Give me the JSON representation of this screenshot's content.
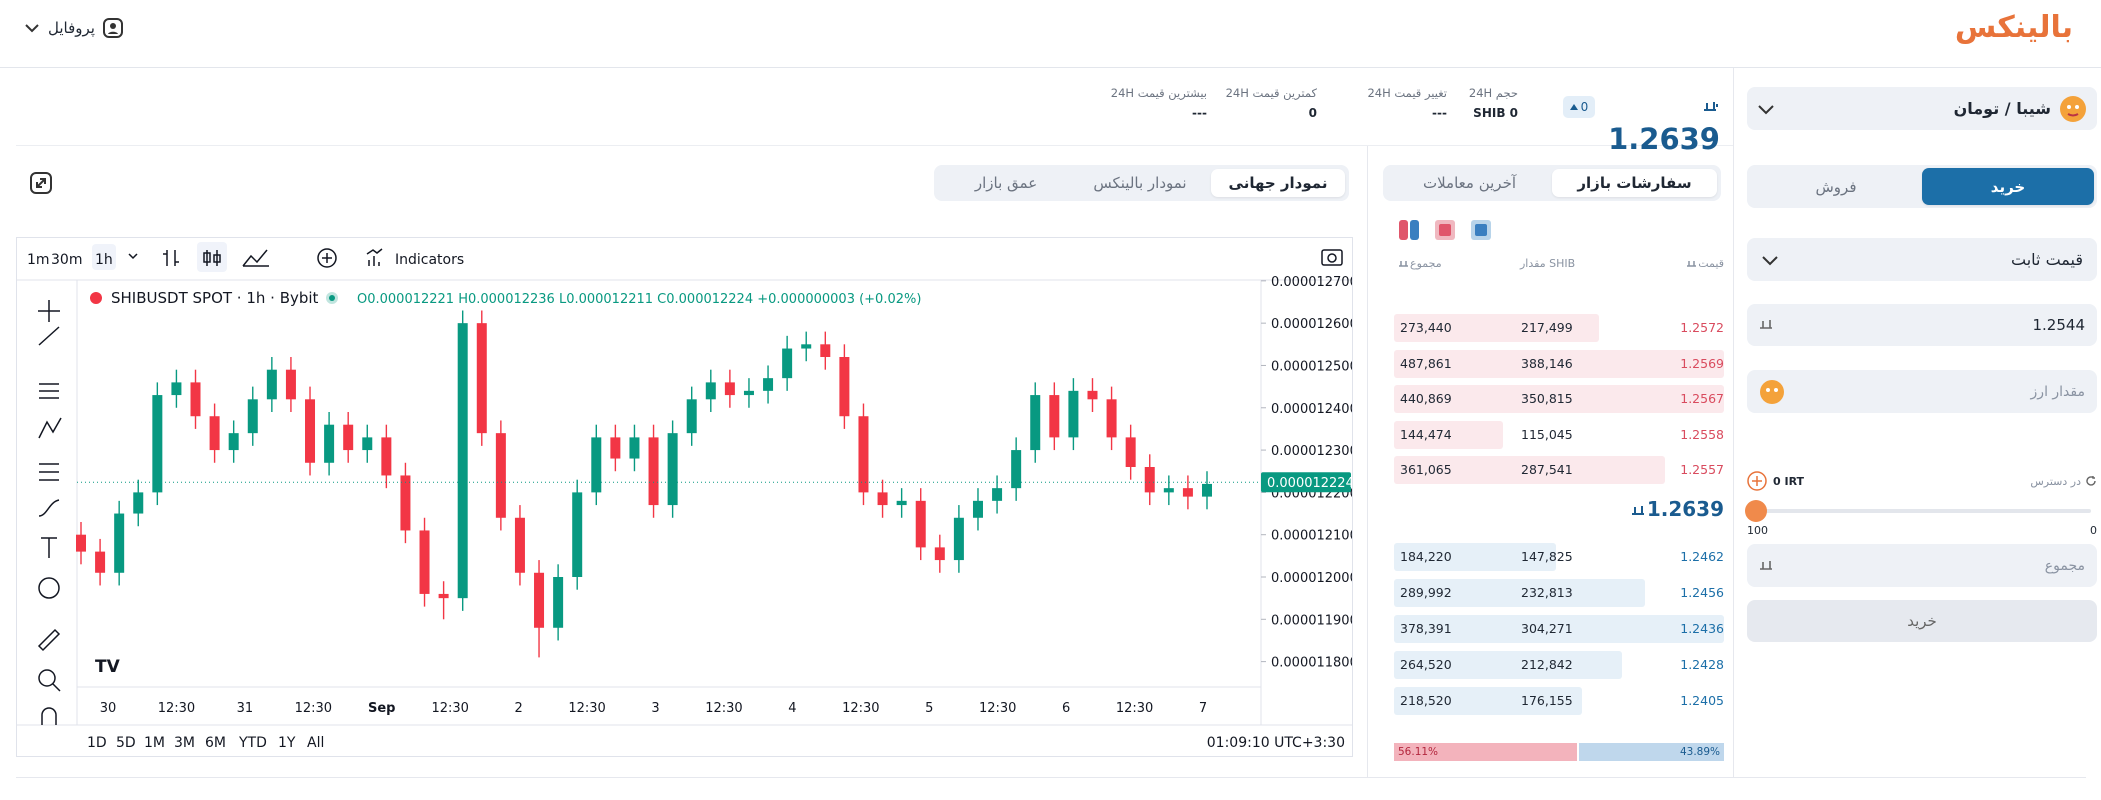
{
  "header": {
    "logo": "بالینکس",
    "profile": "پروفایل"
  },
  "ticker": {
    "pair": "شیبا / تومان",
    "price": "1.2639",
    "change_badge": "0",
    "stats": [
      {
        "label": "حجم 24H",
        "value": "SHIB 0"
      },
      {
        "label": "تغییر قیمت 24H",
        "value": "---"
      },
      {
        "label": "کمترین قیمت 24H",
        "value": "0"
      },
      {
        "label": "بیشترین قیمت 24H",
        "value": "---"
      }
    ]
  },
  "chart_tabs": [
    "نمودار جهانی",
    "نمودار بالینکس",
    "عمق بازار"
  ],
  "chart_data": {
    "type": "candlestick",
    "title": "SHIBUSDT SPOT · 1h · Bybit",
    "ohlc_legend": "O0.000012221 H0.000012236 L0.000012211 C0.000012224 +0.000000003 (+0.02%)",
    "intervals": [
      "1m",
      "30m",
      "1h"
    ],
    "indicators": "Indicators",
    "ranges": [
      "1D",
      "5D",
      "1M",
      "3M",
      "6M",
      "YTD",
      "1Y",
      "All"
    ],
    "clock": "01:09:10 UTC+3:30",
    "x_labels": [
      "30",
      "12:30",
      "31",
      "12:30",
      "Sep",
      "12:30",
      "2",
      "12:30",
      "3",
      "12:30",
      "4",
      "12:30",
      "5",
      "12:30",
      "6",
      "12:30",
      "7"
    ],
    "up_color": "#089981",
    "down_color": "#f23645",
    "open": [
      1.21e-05,
      1.206e-05,
      1.201e-05,
      1.215e-05,
      1.22e-05,
      1.243e-05,
      1.246e-05,
      1.238e-05,
      1.23e-05,
      1.234e-05,
      1.242e-05,
      1.249e-05,
      1.242e-05,
      1.227e-05,
      1.236e-05,
      1.23e-05,
      1.233e-05,
      1.224e-05,
      1.211e-05,
      1.196e-05,
      1.195e-05,
      1.26e-05,
      1.234e-05,
      1.214e-05,
      1.201e-05,
      1.188e-05,
      1.2e-05,
      1.22e-05,
      1.233e-05,
      1.228e-05,
      1.233e-05,
      1.217e-05,
      1.234e-05,
      1.242e-05,
      1.246e-05,
      1.243e-05,
      1.244e-05,
      1.247e-05,
      1.254e-05,
      1.255e-05,
      1.252e-05,
      1.238e-05,
      1.22e-05,
      1.217e-05,
      1.218e-05,
      1.207e-05,
      1.204e-05,
      1.214e-05,
      1.218e-05,
      1.221e-05,
      1.23e-05,
      1.243e-05,
      1.233e-05,
      1.244e-05,
      1.242e-05,
      1.233e-05,
      1.226e-05,
      1.22e-05,
      1.221e-05,
      1.219e-05
    ],
    "high": [
      1.213e-05,
      1.209e-05,
      1.218e-05,
      1.223e-05,
      1.246e-05,
      1.249e-05,
      1.249e-05,
      1.241e-05,
      1.237e-05,
      1.245e-05,
      1.252e-05,
      1.252e-05,
      1.245e-05,
      1.239e-05,
      1.239e-05,
      1.236e-05,
      1.236e-05,
      1.227e-05,
      1.214e-05,
      1.199e-05,
      1.263e-05,
      1.263e-05,
      1.237e-05,
      1.217e-05,
      1.204e-05,
      1.203e-05,
      1.223e-05,
      1.236e-05,
      1.236e-05,
      1.236e-05,
      1.236e-05,
      1.237e-05,
      1.245e-05,
      1.249e-05,
      1.249e-05,
      1.247e-05,
      1.25e-05,
      1.257e-05,
      1.258e-05,
      1.258e-05,
      1.255e-05,
      1.241e-05,
      1.223e-05,
      1.221e-05,
      1.221e-05,
      1.21e-05,
      1.217e-05,
      1.221e-05,
      1.224e-05,
      1.233e-05,
      1.246e-05,
      1.246e-05,
      1.247e-05,
      1.247e-05,
      1.245e-05,
      1.236e-05,
      1.229e-05,
      1.224e-05,
      1.224e-05,
      1.225e-05
    ],
    "low": [
      1.203e-05,
      1.198e-05,
      1.198e-05,
      1.212e-05,
      1.217e-05,
      1.24e-05,
      1.235e-05,
      1.227e-05,
      1.227e-05,
      1.231e-05,
      1.239e-05,
      1.239e-05,
      1.224e-05,
      1.224e-05,
      1.227e-05,
      1.227e-05,
      1.221e-05,
      1.208e-05,
      1.193e-05,
      1.19e-05,
      1.192e-05,
      1.231e-05,
      1.211e-05,
      1.198e-05,
      1.181e-05,
      1.185e-05,
      1.197e-05,
      1.217e-05,
      1.225e-05,
      1.225e-05,
      1.214e-05,
      1.214e-05,
      1.231e-05,
      1.239e-05,
      1.24e-05,
      1.24e-05,
      1.241e-05,
      1.244e-05,
      1.251e-05,
      1.249e-05,
      1.235e-05,
      1.217e-05,
      1.214e-05,
      1.214e-05,
      1.204e-05,
      1.201e-05,
      1.201e-05,
      1.211e-05,
      1.215e-05,
      1.218e-05,
      1.227e-05,
      1.23e-05,
      1.23e-05,
      1.239e-05,
      1.23e-05,
      1.223e-05,
      1.217e-05,
      1.217e-05,
      1.216e-05,
      1.216e-05
    ],
    "close": [
      1.206e-05,
      1.201e-05,
      1.215e-05,
      1.22e-05,
      1.243e-05,
      1.246e-05,
      1.238e-05,
      1.23e-05,
      1.234e-05,
      1.242e-05,
      1.249e-05,
      1.242e-05,
      1.227e-05,
      1.236e-05,
      1.23e-05,
      1.233e-05,
      1.224e-05,
      1.211e-05,
      1.196e-05,
      1.195e-05,
      1.26e-05,
      1.234e-05,
      1.214e-05,
      1.201e-05,
      1.188e-05,
      1.2e-05,
      1.22e-05,
      1.233e-05,
      1.228e-05,
      1.233e-05,
      1.217e-05,
      1.234e-05,
      1.242e-05,
      1.246e-05,
      1.243e-05,
      1.244e-05,
      1.247e-05,
      1.254e-05,
      1.255e-05,
      1.252e-05,
      1.238e-05,
      1.22e-05,
      1.217e-05,
      1.218e-05,
      1.207e-05,
      1.204e-05,
      1.214e-05,
      1.218e-05,
      1.221e-05,
      1.23e-05,
      1.243e-05,
      1.233e-05,
      1.244e-05,
      1.242e-05,
      1.233e-05,
      1.226e-05,
      1.22e-05,
      1.221e-05,
      1.219e-05,
      1.222e-05
    ],
    "ylim": [
      1.174e-05,
      1.2702e-05
    ],
    "yticks": [
      {
        "value": 1.27e-05,
        "label": "0.000012700"
      },
      {
        "value": 1.26e-05,
        "label": "0.000012600"
      },
      {
        "value": 1.25e-05,
        "label": "0.000012500"
      },
      {
        "value": 1.24e-05,
        "label": "0.000012400"
      },
      {
        "value": 1.23e-05,
        "label": "0.000012300"
      },
      {
        "value": 1.22e-05,
        "label": "0.000012200"
      },
      {
        "value": 1.21e-05,
        "label": "0.000012100"
      },
      {
        "value": 1.2e-05,
        "label": "0.000012000"
      },
      {
        "value": 1.19e-05,
        "label": "0.000011900"
      },
      {
        "value": 1.18e-05,
        "label": "0.000011800"
      }
    ],
    "last_price": {
      "value": 1.2224e-05,
      "label": "0.000012224"
    }
  },
  "order_book": {
    "tabs": [
      "سفارشات بازار",
      "آخرین معاملات"
    ],
    "headers": [
      "قیمت",
      "مقدار SHIB",
      "مجموع"
    ],
    "asks": [
      [
        "1.2572",
        "217,499",
        "273,440"
      ],
      [
        "1.2569",
        "388,146",
        "487,861"
      ],
      [
        "1.2567",
        "350,815",
        "440,869"
      ],
      [
        "1.2558",
        "115,045",
        "144,474"
      ],
      [
        "1.2557",
        "287,541",
        "361,065"
      ]
    ],
    "mid_price": "1.2639",
    "bids": [
      [
        "1.2462",
        "147,825",
        "184,220"
      ],
      [
        "1.2456",
        "232,813",
        "289,992"
      ],
      [
        "1.2436",
        "304,271",
        "378,391"
      ],
      [
        "1.2428",
        "212,842",
        "264,520"
      ],
      [
        "1.2405",
        "176,155",
        "218,520"
      ]
    ],
    "ratio": {
      "sell": {
        "value": 56.11,
        "label": "56.11%"
      },
      "buy": {
        "value": 43.89,
        "label": "43.89%"
      }
    }
  },
  "trade_form": {
    "tabs": [
      "خرید",
      "فروش"
    ],
    "order_type": "قیمت ثابت",
    "price": "1.2544",
    "amount_placeholder": "مقدار ارز",
    "available_label": "در دسترس",
    "available_value": "0 IRT",
    "slider_min": "0",
    "slider_max": "100",
    "total_placeholder": "مجموع",
    "submit": "خرید"
  }
}
